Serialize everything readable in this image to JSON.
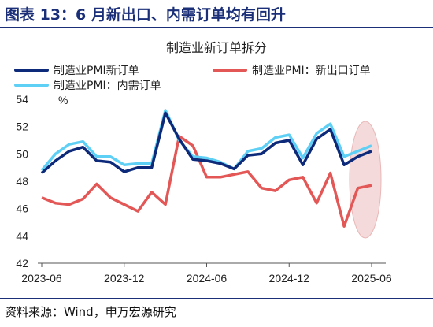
{
  "header": {
    "title": "图表 13：6 月新出口、内需订单均有回升"
  },
  "footer": {
    "source": "资料来源：Wind，申万宏源研究"
  },
  "colors": {
    "brand": "#1a2f78",
    "highlight": "#e9b7b7"
  },
  "chart_data": {
    "type": "line",
    "title": "制造业新订单拆分",
    "ylabel": "%",
    "xlabel": "",
    "ylim": [
      42,
      54
    ],
    "yticks": [
      42,
      44,
      46,
      48,
      50,
      52,
      54
    ],
    "xtick_labels": [
      "2023-06",
      "2023-12",
      "2024-06",
      "2024-12",
      "2025-06"
    ],
    "x": [
      "2023-06",
      "2023-07",
      "2023-08",
      "2023-09",
      "2023-10",
      "2023-11",
      "2023-12",
      "2024-01",
      "2024-02",
      "2024-03",
      "2024-04",
      "2024-05",
      "2024-06",
      "2024-07",
      "2024-08",
      "2024-09",
      "2024-10",
      "2024-11",
      "2024-12",
      "2025-01",
      "2025-02",
      "2025-03",
      "2025-04",
      "2025-05",
      "2025-06"
    ],
    "grid": false,
    "legend_position": "top",
    "series": [
      {
        "name": "制造业PMI新订单",
        "color": "#0d2a7a",
        "values": [
          48.6,
          49.5,
          50.2,
          50.5,
          49.5,
          49.4,
          48.7,
          49.0,
          49.0,
          53.0,
          51.1,
          49.6,
          49.5,
          49.3,
          48.9,
          49.9,
          50.0,
          50.8,
          51.0,
          49.2,
          51.1,
          51.8,
          49.2,
          49.8,
          50.2
        ]
      },
      {
        "name": "制造业PMI：新出口订单",
        "color": "#e35757",
        "values": [
          46.8,
          46.4,
          46.3,
          46.7,
          47.8,
          46.8,
          46.3,
          45.8,
          47.2,
          46.3,
          51.3,
          50.6,
          48.3,
          48.3,
          48.5,
          48.7,
          47.5,
          47.3,
          48.1,
          48.3,
          46.4,
          48.6,
          44.7,
          47.5,
          47.7
        ]
      },
      {
        "name": "制造业PMI：内需订单",
        "color": "#5fd0f5",
        "values": [
          48.8,
          50.0,
          50.7,
          50.9,
          49.8,
          49.8,
          49.2,
          49.3,
          49.3,
          53.2,
          51.0,
          49.8,
          49.7,
          49.4,
          48.9,
          50.2,
          50.4,
          51.2,
          51.4,
          49.7,
          51.5,
          52.2,
          49.8,
          50.2,
          50.6
        ]
      }
    ],
    "annotations": [
      {
        "type": "highlight-ellipse",
        "x_range": [
          "2025-04",
          "2025-06"
        ]
      }
    ]
  }
}
